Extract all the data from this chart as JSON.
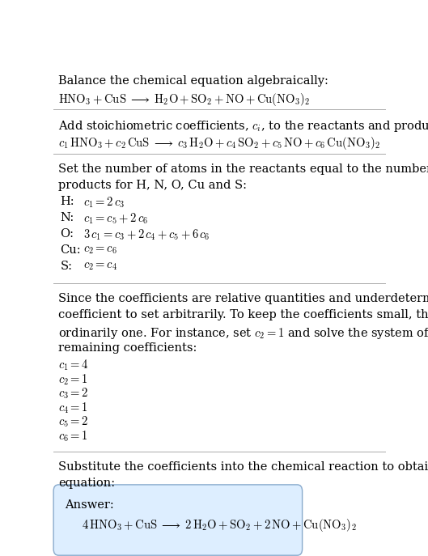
{
  "bg_color": "#ffffff",
  "text_color": "#000000",
  "answer_box_facecolor": "#ddeeff",
  "answer_box_edgecolor": "#88aacc",
  "figsize": [
    5.29,
    6.87
  ],
  "dpi": 100,
  "fontsize": 10.5,
  "section1_title": "Balance the chemical equation algebraically:",
  "section1_eq": "$\\mathrm{HNO_3 + CuS \\;\\longrightarrow\\; H_2O + SO_2 + NO + Cu(NO_3)_2}$",
  "section2_title": "Add stoichiometric coefficients, $c_i$, to the reactants and products:",
  "section2_eq": "$c_1\\,\\mathrm{HNO_3} + c_2\\,\\mathrm{CuS} \\;\\longrightarrow\\; c_3\\,\\mathrm{H_2O} + c_4\\,\\mathrm{SO_2} + c_5\\,\\mathrm{NO} + c_6\\,\\mathrm{Cu(NO_3)_2}$",
  "section3_intro": "Set the number of atoms in the reactants equal to the number of atoms in the products for H, N, O, Cu and S:",
  "section3_labels": [
    "H:",
    "N:",
    "O:",
    "Cu:",
    "S:"
  ],
  "section3_eqs": [
    "$c_1 = 2\\,c_3$",
    "$c_1 = c_5 + 2\\,c_6$",
    "$3\\,c_1 = c_3 + 2\\,c_4 + c_5 + 6\\,c_6$",
    "$c_2 = c_6$",
    "$c_2 = c_4$"
  ],
  "section4_intro": "Since the coefficients are relative quantities and underdetermined, choose a coefficient to set arbitrarily. To keep the coefficients small, the arbitrary value is ordinarily one. For instance, set $c_2 = 1$ and solve the system of equations for the remaining coefficients:",
  "section4_lines": [
    "$c_1 = 4$",
    "$c_2 = 1$",
    "$c_3 = 2$",
    "$c_4 = 1$",
    "$c_5 = 2$",
    "$c_6 = 1$"
  ],
  "section5_intro": "Substitute the coefficients into the chemical reaction to obtain the balanced equation:",
  "answer_label": "Answer:",
  "answer_eq": "$4\\,\\mathrm{HNO_3} + \\mathrm{CuS} \\;\\longrightarrow\\; 2\\,\\mathrm{H_2O} + \\mathrm{SO_2} + 2\\,\\mathrm{NO} + \\mathrm{Cu(NO_3)_2}$"
}
